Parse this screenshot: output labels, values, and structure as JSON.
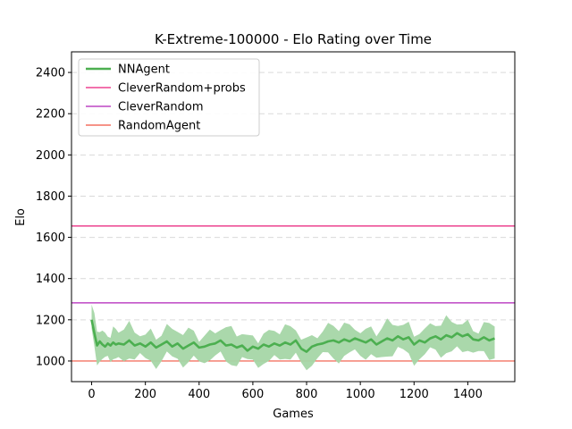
{
  "chart_data": {
    "type": "line",
    "title": "K-Extreme-100000 - Elo Rating over Time",
    "xlabel": "Games",
    "ylabel": "Elo",
    "xlim": [
      -75,
      1575
    ],
    "ylim": [
      900,
      2500
    ],
    "xticks": [
      0,
      200,
      400,
      600,
      800,
      1000,
      1200,
      1400
    ],
    "yticks": [
      1000,
      1200,
      1400,
      1600,
      1800,
      2000,
      2200,
      2400
    ],
    "grid": "horizontal-dashed",
    "legend_position": "top-left",
    "series": [
      {
        "name": "NNAgent",
        "color": "#4caf50",
        "band_color": "#a5d6a7",
        "x": [
          0,
          10,
          20,
          30,
          40,
          50,
          60,
          70,
          80,
          90,
          100,
          120,
          140,
          160,
          180,
          200,
          220,
          240,
          260,
          280,
          300,
          320,
          340,
          360,
          380,
          400,
          420,
          440,
          460,
          480,
          500,
          520,
          540,
          560,
          580,
          600,
          620,
          640,
          660,
          680,
          700,
          720,
          740,
          760,
          780,
          800,
          820,
          840,
          860,
          880,
          900,
          920,
          940,
          960,
          980,
          1000,
          1020,
          1040,
          1060,
          1080,
          1100,
          1120,
          1140,
          1160,
          1180,
          1200,
          1220,
          1240,
          1260,
          1280,
          1300,
          1320,
          1340,
          1360,
          1380,
          1400,
          1420,
          1440,
          1460,
          1480,
          1500
        ],
        "values": [
          1200,
          1135,
          1075,
          1095,
          1080,
          1070,
          1085,
          1075,
          1090,
          1080,
          1085,
          1080,
          1100,
          1075,
          1085,
          1070,
          1090,
          1065,
          1080,
          1095,
          1070,
          1085,
          1060,
          1075,
          1090,
          1065,
          1070,
          1080,
          1085,
          1100,
          1075,
          1080,
          1065,
          1075,
          1050,
          1070,
          1060,
          1080,
          1070,
          1085,
          1075,
          1090,
          1080,
          1100,
          1060,
          1045,
          1070,
          1080,
          1085,
          1095,
          1100,
          1090,
          1105,
          1095,
          1110,
          1100,
          1090,
          1105,
          1080,
          1095,
          1110,
          1100,
          1120,
          1105,
          1115,
          1080,
          1100,
          1090,
          1110,
          1120,
          1105,
          1125,
          1115,
          1135,
          1120,
          1130,
          1105,
          1100,
          1115,
          1100,
          1110
        ],
        "band_half_width": 62
      },
      {
        "name": "CleverRandom+probs",
        "color": "#e91e7a",
        "constant": 1655
      },
      {
        "name": "CleverRandom",
        "color": "#b020b8",
        "constant": 1282
      },
      {
        "name": "RandomAgent",
        "color": "#f05542",
        "constant": 1000
      }
    ]
  }
}
